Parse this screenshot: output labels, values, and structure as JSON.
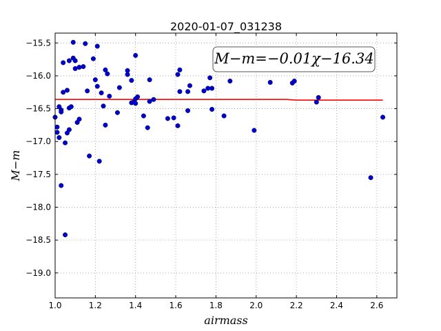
{
  "chart_data": {
    "type": "scatter",
    "title": "2020-01-07_031238",
    "xlabel": "airmass",
    "ylabel": "M−m",
    "xlim": [
      1.0,
      2.7
    ],
    "ylim": [
      -15.35,
      -19.38
    ],
    "y_inverted": true,
    "grid": true,
    "xticks": [
      1.0,
      1.2,
      1.4,
      1.6,
      1.8,
      2.0,
      2.2,
      2.4,
      2.6
    ],
    "xtick_labels": [
      "1.0",
      "1.2",
      "1.4",
      "1.6",
      "1.8",
      "2.0",
      "2.2",
      "2.4",
      "2.6"
    ],
    "yticks": [
      -15.5,
      -16.0,
      -16.5,
      -17.0,
      -17.5,
      -18.0,
      -18.5,
      -19.0
    ],
    "ytick_labels": [
      "−15.5",
      "−16.0",
      "−16.5",
      "−17.0",
      "−17.5",
      "−18.0",
      "−18.5",
      "−19.0"
    ],
    "annotation": "M−m=−0.01χ−16.34",
    "colors": {
      "points": "#0000cc",
      "fit": "#ff0000",
      "grid": "#999999"
    },
    "series": [
      {
        "type": "scatter",
        "x": [
          1.0,
          1.01,
          1.01,
          1.02,
          1.02,
          1.03,
          1.03,
          1.03,
          1.04,
          1.04,
          1.05,
          1.05,
          1.06,
          1.06,
          1.07,
          1.07,
          1.07,
          1.08,
          1.09,
          1.09,
          1.1,
          1.1,
          1.11,
          1.12,
          1.12,
          1.14,
          1.15,
          1.16,
          1.17,
          1.19,
          1.2,
          1.21,
          1.21,
          1.22,
          1.23,
          1.24,
          1.25,
          1.25,
          1.26,
          1.27,
          1.31,
          1.32,
          1.36,
          1.36,
          1.38,
          1.38,
          1.39,
          1.4,
          1.4,
          1.4,
          1.41,
          1.44,
          1.46,
          1.47,
          1.47,
          1.49,
          1.56,
          1.59,
          1.61,
          1.61,
          1.62,
          1.62,
          1.66,
          1.66,
          1.67,
          1.74,
          1.76,
          1.77,
          1.78,
          1.78,
          1.84,
          1.87,
          1.99,
          2.07,
          2.18,
          2.19,
          2.3,
          2.31,
          2.57,
          2.63
        ],
        "y": [
          -16.63,
          -16.78,
          -16.86,
          -16.94,
          -16.47,
          -16.52,
          -16.55,
          -17.67,
          -16.25,
          -15.8,
          -17.02,
          -18.42,
          -16.22,
          -16.87,
          -15.77,
          -16.49,
          -16.82,
          -16.47,
          -15.49,
          -15.73,
          -15.77,
          -15.89,
          -16.71,
          -15.87,
          -16.66,
          -15.86,
          -15.51,
          -16.23,
          -17.22,
          -15.74,
          -16.06,
          -15.55,
          -16.16,
          -17.3,
          -16.26,
          -16.46,
          -15.91,
          -16.75,
          -15.97,
          -16.31,
          -16.56,
          -16.18,
          -15.92,
          -15.98,
          -16.07,
          -16.41,
          -16.4,
          -15.69,
          -16.35,
          -16.42,
          -16.32,
          -16.61,
          -16.79,
          -16.06,
          -16.39,
          -16.36,
          -16.65,
          -16.64,
          -15.98,
          -16.76,
          -15.91,
          -16.24,
          -16.24,
          -16.53,
          -16.15,
          -16.23,
          -16.19,
          -16.03,
          -16.19,
          -16.51,
          -16.61,
          -16.08,
          -16.83,
          -16.1,
          -16.11,
          -16.08,
          -16.4,
          -16.33,
          -17.55,
          -16.63
        ]
      },
      {
        "type": "line",
        "x": [
          1.0,
          1.6,
          2.15,
          2.2,
          2.63
        ],
        "y": [
          -16.36,
          -16.36,
          -16.36,
          -16.37,
          -16.37
        ]
      }
    ]
  }
}
